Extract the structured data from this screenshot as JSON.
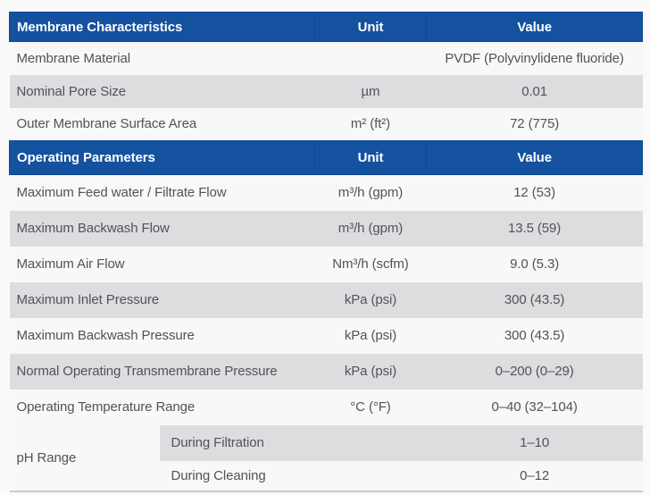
{
  "colors": {
    "header_bg": "#14519f",
    "header_text": "#ffffff",
    "row_shaded": "#dcddde",
    "row_plain": "#f8f8f9",
    "page_bg": "#fafafa",
    "text": "#515359",
    "border_line": "#c9cacc"
  },
  "sections": [
    {
      "header": {
        "title": "Membrane Characteristics",
        "unit": "Unit",
        "value": "Value"
      },
      "rows": [
        {
          "name": "Membrane Material",
          "unit": "",
          "value": "PVDF (Polyvinylidene fluoride)"
        },
        {
          "name": "Nominal Pore Size",
          "unit": "µm",
          "value": "0.01"
        },
        {
          "name": "Outer Membrane Surface Area",
          "unit": "m² (ft²)",
          "value": "72 (775)"
        }
      ]
    },
    {
      "header": {
        "title": "Operating Parameters",
        "unit": "Unit",
        "value": "Value"
      },
      "rows": [
        {
          "name": "Maximum Feed water / Filtrate Flow",
          "unit": "m³/h (gpm)",
          "value": "12 (53)"
        },
        {
          "name": "Maximum Backwash Flow",
          "unit": "m³/h (gpm)",
          "value": "13.5 (59)"
        },
        {
          "name": "Maximum Air Flow",
          "unit": "Nm³/h (scfm)",
          "value": "9.0 (5.3)"
        },
        {
          "name": "Maximum Inlet Pressure",
          "unit": "kPa (psi)",
          "value": "300 (43.5)"
        },
        {
          "name": "Maximum Backwash Pressure",
          "unit": "kPa (psi)",
          "value": "300 (43.5)"
        },
        {
          "name": "Normal Operating Transmembrane Pressure",
          "unit": "kPa (psi)",
          "value": "0–200 (0–29)"
        },
        {
          "name": "Operating Temperature Range",
          "unit": "°C (°F)",
          "value": "0–40 (32–104)"
        }
      ]
    }
  ],
  "ph_group": {
    "label": "pH Range",
    "rows": [
      {
        "name": "During Filtration",
        "value": "1–10"
      },
      {
        "name": "During Cleaning",
        "value": "0–12"
      }
    ]
  }
}
